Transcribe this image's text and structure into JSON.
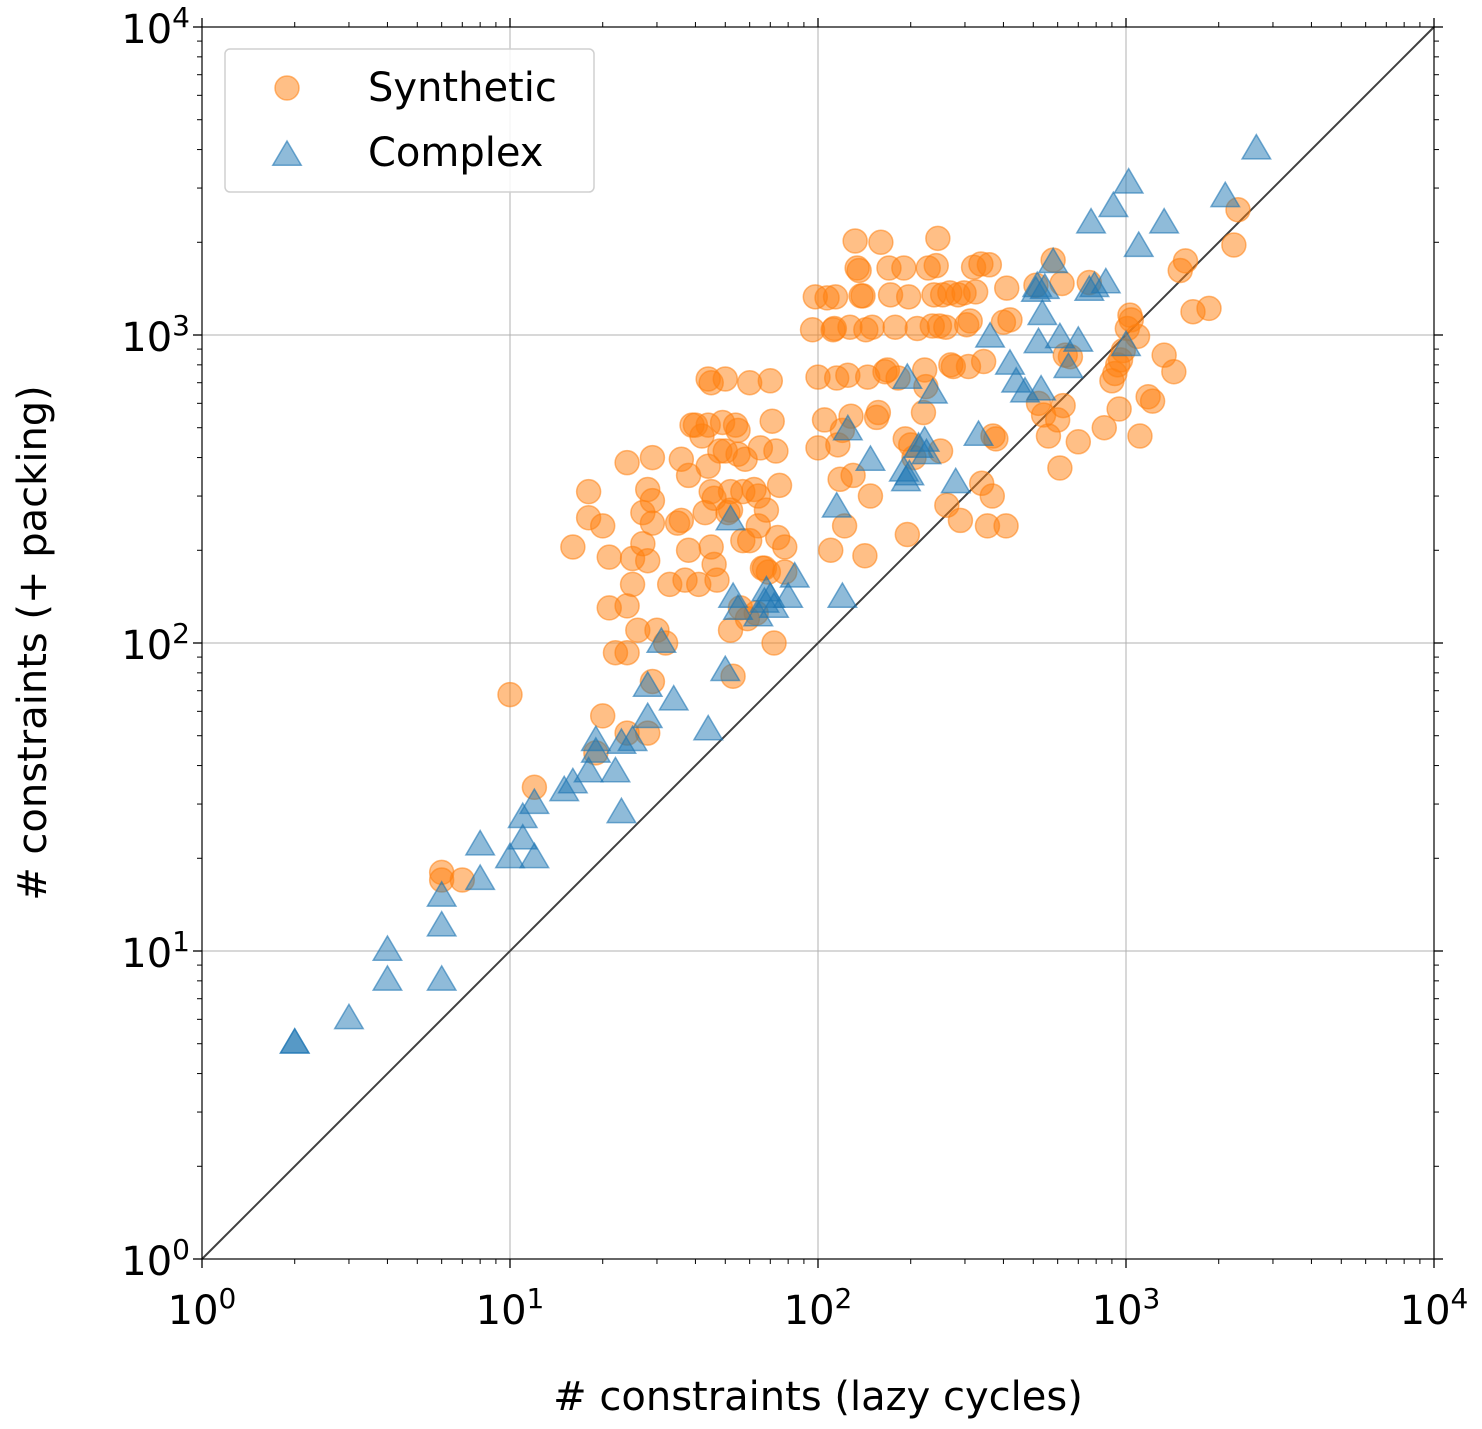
{
  "chart_data": {
    "type": "scatter",
    "title": "",
    "xlabel": "# constraints (lazy cycles)",
    "ylabel": "# constraints (+ packing)",
    "xscale": "log",
    "yscale": "log",
    "xlim": [
      1,
      10000
    ],
    "ylim": [
      1,
      10000
    ],
    "grid": true,
    "legend_position": "top-left",
    "x_ticks": [
      {
        "value": 1,
        "base": "10",
        "exp": "0"
      },
      {
        "value": 10,
        "base": "10",
        "exp": "1"
      },
      {
        "value": 100,
        "base": "10",
        "exp": "2"
      },
      {
        "value": 1000,
        "base": "10",
        "exp": "3"
      },
      {
        "value": 10000,
        "base": "10",
        "exp": "4"
      }
    ],
    "y_ticks": [
      {
        "value": 1,
        "base": "10",
        "exp": "0"
      },
      {
        "value": 10,
        "base": "10",
        "exp": "1"
      },
      {
        "value": 100,
        "base": "10",
        "exp": "2"
      },
      {
        "value": 1000,
        "base": "10",
        "exp": "3"
      },
      {
        "value": 10000,
        "base": "10",
        "exp": "4"
      }
    ],
    "reference_line": {
      "x": [
        1,
        10000
      ],
      "y": [
        1,
        10000
      ],
      "color": "#404040"
    },
    "series": [
      {
        "name": "Synthetic",
        "marker": "circle",
        "color": "#ff7f0e",
        "points": [
          [
            10,
            68
          ],
          [
            6,
            18
          ],
          [
            6,
            17
          ],
          [
            7,
            17
          ],
          [
            12,
            34
          ],
          [
            20,
            58
          ],
          [
            19,
            44
          ],
          [
            28,
            51
          ],
          [
            24,
            51
          ],
          [
            16,
            205
          ],
          [
            18,
            310
          ],
          [
            18,
            255
          ],
          [
            20,
            240
          ],
          [
            21,
            190
          ],
          [
            21,
            130
          ],
          [
            22,
            93
          ],
          [
            24,
            93
          ],
          [
            24,
            132
          ],
          [
            24,
            385
          ],
          [
            25,
            155
          ],
          [
            25,
            188
          ],
          [
            26,
            110
          ],
          [
            27,
            210
          ],
          [
            27,
            265
          ],
          [
            28,
            185
          ],
          [
            28,
            315
          ],
          [
            29,
            400
          ],
          [
            29,
            245
          ],
          [
            29,
            290
          ],
          [
            29,
            75
          ],
          [
            30,
            110
          ],
          [
            32,
            100
          ],
          [
            33,
            155
          ],
          [
            35,
            245
          ],
          [
            36,
            395
          ],
          [
            36,
            250
          ],
          [
            37,
            160
          ],
          [
            38,
            200
          ],
          [
            38,
            350
          ],
          [
            39,
            510
          ],
          [
            40,
            510
          ],
          [
            41,
            155
          ],
          [
            42,
            470
          ],
          [
            43,
            265
          ],
          [
            44,
            510
          ],
          [
            44,
            720
          ],
          [
            44,
            375
          ],
          [
            45,
            205
          ],
          [
            45,
            310
          ],
          [
            45,
            700
          ],
          [
            46,
            180
          ],
          [
            46,
            295
          ],
          [
            47,
            160
          ],
          [
            48,
            420
          ],
          [
            49,
            520
          ],
          [
            50,
            720
          ],
          [
            50,
            420
          ],
          [
            51,
            265
          ],
          [
            52,
            310
          ],
          [
            52,
            270
          ],
          [
            52,
            110
          ],
          [
            53,
            78
          ],
          [
            54,
            510
          ],
          [
            55,
            410
          ],
          [
            55,
            490
          ],
          [
            56,
            130
          ],
          [
            57,
            310
          ],
          [
            57,
            215
          ],
          [
            58,
            395
          ],
          [
            59,
            120
          ],
          [
            60,
            215
          ],
          [
            60,
            700
          ],
          [
            62,
            315
          ],
          [
            63,
            125
          ],
          [
            64,
            300
          ],
          [
            64,
            240
          ],
          [
            65,
            430
          ],
          [
            66,
            175
          ],
          [
            67,
            175
          ],
          [
            68,
            270
          ],
          [
            69,
            170
          ],
          [
            70,
            710
          ],
          [
            71,
            525
          ],
          [
            72,
            100
          ],
          [
            73,
            420
          ],
          [
            74,
            220
          ],
          [
            75,
            325
          ],
          [
            78,
            205
          ],
          [
            78,
            170
          ],
          [
            96,
            1040
          ],
          [
            98,
            1330
          ],
          [
            100,
            730
          ],
          [
            100,
            430
          ],
          [
            105,
            530
          ],
          [
            107,
            1320
          ],
          [
            110,
            200
          ],
          [
            112,
            1040
          ],
          [
            113,
            1050
          ],
          [
            114,
            1330
          ],
          [
            115,
            725
          ],
          [
            116,
            440
          ],
          [
            118,
            340
          ],
          [
            120,
            490
          ],
          [
            122,
            240
          ],
          [
            125,
            740
          ],
          [
            127,
            1060
          ],
          [
            128,
            545
          ],
          [
            130,
            350
          ],
          [
            132,
            2020
          ],
          [
            134,
            1650
          ],
          [
            136,
            1620
          ],
          [
            138,
            1340
          ],
          [
            140,
            1340
          ],
          [
            142,
            192
          ],
          [
            143,
            1040
          ],
          [
            145,
            730
          ],
          [
            148,
            300
          ],
          [
            150,
            1060
          ],
          [
            155,
            540
          ],
          [
            157,
            560
          ],
          [
            160,
            2000
          ],
          [
            165,
            760
          ],
          [
            168,
            770
          ],
          [
            170,
            1650
          ],
          [
            172,
            1350
          ],
          [
            178,
            1060
          ],
          [
            182,
            725
          ],
          [
            190,
            1650
          ],
          [
            192,
            460
          ],
          [
            195,
            225
          ],
          [
            197,
            1330
          ],
          [
            200,
            440
          ],
          [
            205,
            400
          ],
          [
            210,
            1050
          ],
          [
            220,
            560
          ],
          [
            222,
            770
          ],
          [
            224,
            680
          ],
          [
            228,
            1650
          ],
          [
            235,
            1070
          ],
          [
            238,
            1350
          ],
          [
            242,
            1680
          ],
          [
            245,
            2060
          ],
          [
            248,
            1070
          ],
          [
            250,
            420
          ],
          [
            254,
            1350
          ],
          [
            260,
            1060
          ],
          [
            262,
            280
          ],
          [
            268,
            1370
          ],
          [
            270,
            800
          ],
          [
            275,
            790
          ],
          [
            285,
            1350
          ],
          [
            290,
            250
          ],
          [
            298,
            1370
          ],
          [
            304,
            1080
          ],
          [
            308,
            790
          ],
          [
            312,
            1110
          ],
          [
            320,
            1660
          ],
          [
            325,
            1380
          ],
          [
            338,
            1700
          ],
          [
            340,
            330
          ],
          [
            345,
            820
          ],
          [
            355,
            240
          ],
          [
            360,
            1690
          ],
          [
            368,
            300
          ],
          [
            370,
            470
          ],
          [
            378,
            460
          ],
          [
            400,
            1100
          ],
          [
            408,
            240
          ],
          [
            410,
            1420
          ],
          [
            420,
            1120
          ],
          [
            510,
            1450
          ],
          [
            520,
            600
          ],
          [
            540,
            550
          ],
          [
            560,
            470
          ],
          [
            580,
            1750
          ],
          [
            600,
            530
          ],
          [
            610,
            370
          ],
          [
            620,
            1470
          ],
          [
            625,
            590
          ],
          [
            635,
            860
          ],
          [
            660,
            850
          ],
          [
            700,
            450
          ],
          [
            760,
            1480
          ],
          [
            850,
            500
          ],
          [
            900,
            710
          ],
          [
            920,
            750
          ],
          [
            950,
            575
          ],
          [
            980,
            890
          ],
          [
            1010,
            1050
          ],
          [
            1030,
            1160
          ],
          [
            1040,
            1120
          ],
          [
            1090,
            990
          ],
          [
            1110,
            470
          ],
          [
            1180,
            630
          ],
          [
            1220,
            610
          ],
          [
            1330,
            860
          ],
          [
            1430,
            760
          ],
          [
            1500,
            1620
          ],
          [
            1560,
            1740
          ],
          [
            1650,
            1190
          ],
          [
            1860,
            1220
          ],
          [
            2240,
            1960
          ],
          [
            2310,
            2550
          ],
          [
            960,
            830
          ],
          [
            940,
            800
          ]
        ]
      },
      {
        "name": "Complex",
        "marker": "triangle",
        "color": "#1f77b4",
        "points": [
          [
            2,
            5
          ],
          [
            2,
            5
          ],
          [
            3,
            6
          ],
          [
            4,
            8
          ],
          [
            4,
            10
          ],
          [
            6,
            8
          ],
          [
            6,
            12
          ],
          [
            6,
            15
          ],
          [
            8,
            17
          ],
          [
            8,
            22
          ],
          [
            10,
            20
          ],
          [
            11,
            23
          ],
          [
            11,
            27
          ],
          [
            12,
            20
          ],
          [
            12,
            30
          ],
          [
            15,
            33
          ],
          [
            16,
            35
          ],
          [
            18,
            38
          ],
          [
            19,
            44
          ],
          [
            19,
            48
          ],
          [
            22,
            38
          ],
          [
            23,
            28
          ],
          [
            23,
            47
          ],
          [
            25,
            48
          ],
          [
            28,
            57
          ],
          [
            28,
            72
          ],
          [
            31,
            100
          ],
          [
            34,
            65
          ],
          [
            44,
            52
          ],
          [
            50,
            81
          ],
          [
            52,
            250
          ],
          [
            53,
            140
          ],
          [
            55,
            128
          ],
          [
            64,
            122
          ],
          [
            67,
            135
          ],
          [
            68,
            147
          ],
          [
            70,
            140
          ],
          [
            72,
            130
          ],
          [
            80,
            140
          ],
          [
            84,
            163
          ],
          [
            120,
            140
          ],
          [
            115,
            275
          ],
          [
            125,
            490
          ],
          [
            148,
            390
          ],
          [
            193,
            335
          ],
          [
            190,
            360
          ],
          [
            195,
            720
          ],
          [
            198,
            350
          ],
          [
            212,
            430
          ],
          [
            222,
            450
          ],
          [
            225,
            410
          ],
          [
            236,
            645
          ],
          [
            280,
            330
          ],
          [
            332,
            470
          ],
          [
            362,
            980
          ],
          [
            420,
            800
          ],
          [
            440,
            700
          ],
          [
            470,
            650
          ],
          [
            510,
            1380
          ],
          [
            515,
            1430
          ],
          [
            520,
            940
          ],
          [
            530,
            660
          ],
          [
            535,
            1160
          ],
          [
            545,
            1410
          ],
          [
            580,
            1710
          ],
          [
            610,
            975
          ],
          [
            650,
            780
          ],
          [
            700,
            950
          ],
          [
            760,
            1390
          ],
          [
            770,
            2300
          ],
          [
            790,
            1430
          ],
          [
            860,
            1470
          ],
          [
            910,
            2600
          ],
          [
            1000,
            920
          ],
          [
            1020,
            3100
          ],
          [
            1100,
            1930
          ],
          [
            1330,
            2300
          ],
          [
            2100,
            2800
          ],
          [
            2650,
            4000
          ]
        ]
      }
    ]
  }
}
